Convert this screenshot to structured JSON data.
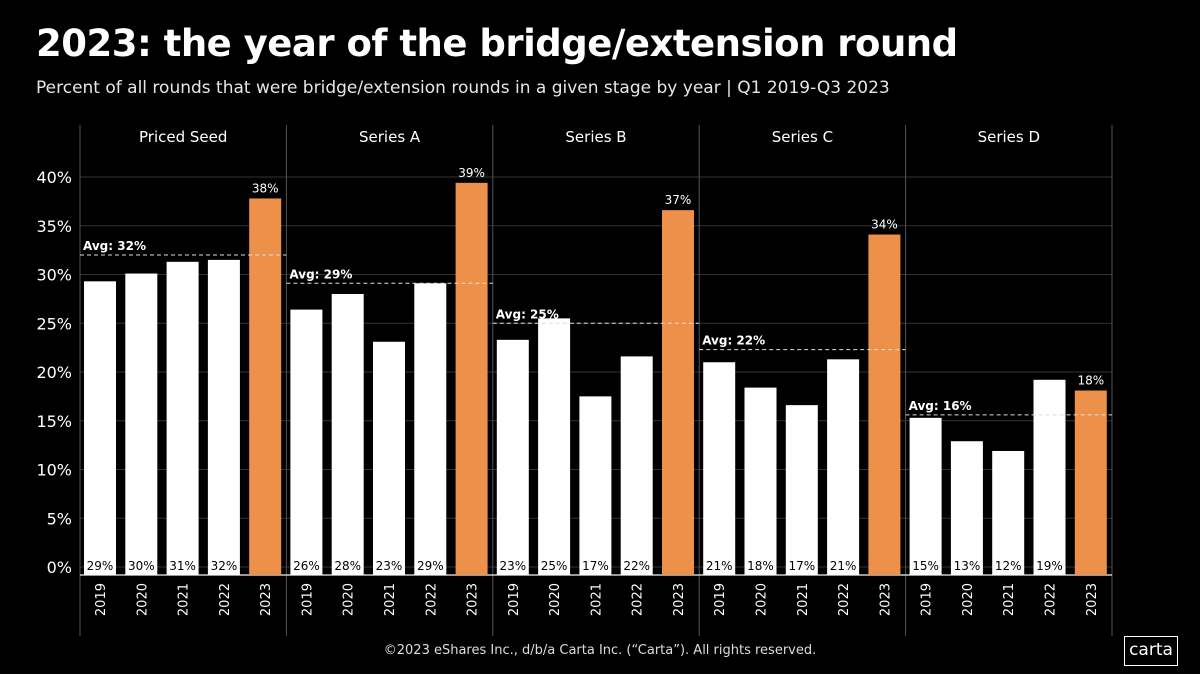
{
  "title": "2023: the year of the bridge/extension round",
  "subtitle": "Percent of all rounds that were bridge/extension rounds in a given stage by year | Q1 2019-Q3 2023",
  "footer": "©2023 eShares Inc., d/b/a Carta Inc. (“Carta”). All rights reserved.",
  "logo": "carta",
  "colors": {
    "highlight": "#ED914A",
    "bar": "#FFFFFF",
    "background": "#000000",
    "grid": "#333333"
  },
  "chart_data": {
    "type": "bar",
    "title": "2023: the year of the bridge/extension round",
    "ylim": [
      0,
      40
    ],
    "yticks": [
      "0%",
      "5%",
      "10%",
      "15%",
      "20%",
      "25%",
      "30%",
      "35%",
      "40%"
    ],
    "ytick_values": [
      0,
      5,
      10,
      15,
      20,
      25,
      30,
      35,
      40
    ],
    "grid": true,
    "categories": [
      "2019",
      "2020",
      "2021",
      "2022",
      "2023"
    ],
    "panels": [
      {
        "name": "Priced Seed",
        "values": [
          29.3,
          30.1,
          31.3,
          31.5,
          37.8
        ],
        "labels": [
          "29%",
          "30%",
          "31%",
          "32%",
          "38%"
        ],
        "avg": 32.0,
        "avg_label": "Avg: 32%"
      },
      {
        "name": "Series A",
        "values": [
          26.4,
          28.0,
          23.1,
          29.1,
          39.4
        ],
        "labels": [
          "26%",
          "28%",
          "23%",
          "29%",
          "39%"
        ],
        "avg": 29.1,
        "avg_label": "Avg: 29%"
      },
      {
        "name": "Series B",
        "values": [
          23.3,
          25.5,
          17.5,
          21.6,
          36.6
        ],
        "labels": [
          "23%",
          "25%",
          "17%",
          "22%",
          "37%"
        ],
        "avg": 25.0,
        "avg_label": "Avg: 25%"
      },
      {
        "name": "Series C",
        "values": [
          21.0,
          18.4,
          16.6,
          21.3,
          34.1
        ],
        "labels": [
          "21%",
          "18%",
          "17%",
          "21%",
          "34%"
        ],
        "avg": 22.3,
        "avg_label": "Avg: 22%"
      },
      {
        "name": "Series D",
        "values": [
          15.3,
          12.9,
          11.9,
          19.2,
          18.1
        ],
        "labels": [
          "15%",
          "13%",
          "12%",
          "19%",
          "18%"
        ],
        "avg": 15.6,
        "avg_label": "Avg: 16%"
      }
    ]
  }
}
